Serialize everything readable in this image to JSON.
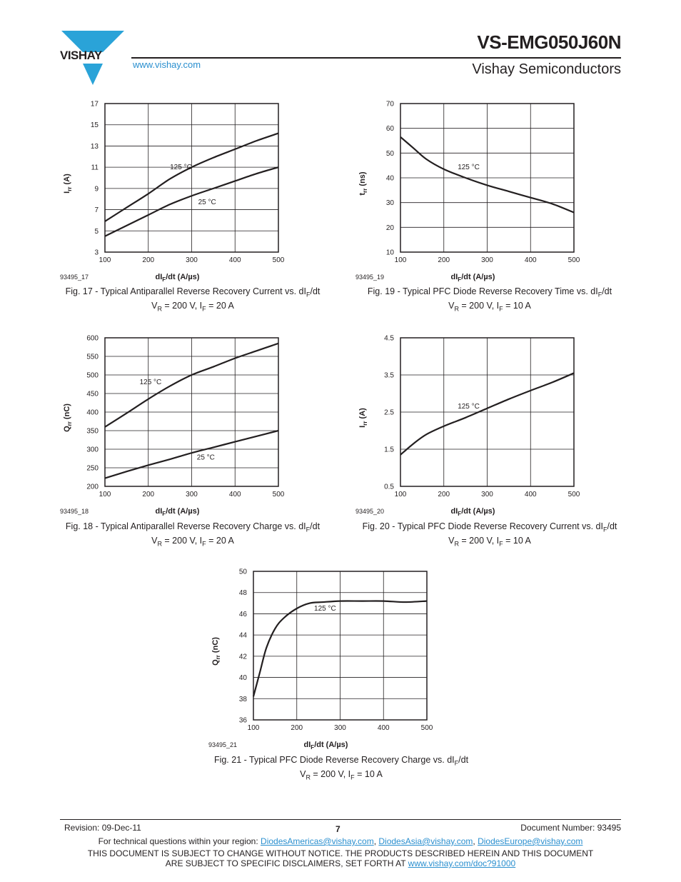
{
  "header": {
    "brand": "VISHAY",
    "part_number": "VS-EMG050J60N",
    "company": "Vishay Semiconductors",
    "website": "www.vishay.com"
  },
  "chart_data": [
    {
      "id": "fig17",
      "type": "line",
      "ylabel": "Irr (A)",
      "xlabel": "dIF/dt (A/µs)",
      "x_ticks": [
        100,
        200,
        300,
        400,
        500
      ],
      "y_ticks": [
        3,
        5,
        7,
        9,
        11,
        13,
        15,
        17
      ],
      "xlim": [
        100,
        500
      ],
      "ylim": [
        3,
        17
      ],
      "grid": true,
      "figure_id": "93495_17",
      "series": [
        {
          "name": "125 °C",
          "x": [
            100,
            150,
            200,
            250,
            300,
            350,
            400,
            450,
            500
          ],
          "y": [
            5.9,
            7.2,
            8.5,
            9.9,
            11.0,
            11.9,
            12.7,
            13.5,
            14.2
          ]
        },
        {
          "name": "25 °C",
          "x": [
            100,
            150,
            200,
            250,
            300,
            350,
            400,
            450,
            500
          ],
          "y": [
            4.5,
            5.5,
            6.5,
            7.5,
            8.3,
            9.0,
            9.7,
            10.4,
            11.0
          ]
        }
      ],
      "annotations": [
        {
          "text": "125 °C",
          "x": 250,
          "y": 10.8
        },
        {
          "text": "25 °C",
          "x": 315,
          "y": 7.5
        }
      ],
      "caption_line1": "Fig. 17 - Typical Antiparallel Reverse Recovery Current vs. dIF/dt",
      "caption_line2": "VR = 200 V, IF = 20 A"
    },
    {
      "id": "fig19",
      "type": "line",
      "ylabel": "trr (ns)",
      "xlabel": "dIF/dt (A/µs)",
      "x_ticks": [
        100,
        200,
        300,
        400,
        500
      ],
      "y_ticks": [
        10,
        20,
        30,
        40,
        50,
        60,
        70
      ],
      "xlim": [
        100,
        500
      ],
      "ylim": [
        10,
        70
      ],
      "grid": true,
      "figure_id": "93495_19",
      "series": [
        {
          "name": "125 °C",
          "x": [
            100,
            130,
            160,
            200,
            250,
            300,
            350,
            400,
            450,
            500
          ],
          "y": [
            56.5,
            52.0,
            47.5,
            43.5,
            40.0,
            37.0,
            34.5,
            32.0,
            29.5,
            26.0
          ]
        }
      ],
      "annotations": [
        {
          "text": "125 °C",
          "x": 232,
          "y": 43.5
        }
      ],
      "caption_line1": "Fig. 19 - Typical PFC Diode Reverse Recovery Time vs. dIF/dt",
      "caption_line2": "VR = 200 V, IF = 10 A"
    },
    {
      "id": "fig18",
      "type": "line",
      "ylabel": "Qrr (nC)",
      "xlabel": "dIF/dt (A/µs)",
      "x_ticks": [
        100,
        200,
        300,
        400,
        500
      ],
      "y_ticks": [
        200,
        250,
        300,
        350,
        400,
        450,
        500,
        550,
        600
      ],
      "xlim": [
        100,
        500
      ],
      "ylim": [
        200,
        600
      ],
      "grid": true,
      "figure_id": "93495_18",
      "series": [
        {
          "name": "125 °C",
          "x": [
            100,
            150,
            200,
            250,
            300,
            350,
            400,
            450,
            500
          ],
          "y": [
            360,
            397,
            435,
            470,
            500,
            522,
            545,
            565,
            585
          ]
        },
        {
          "name": "25 °C",
          "x": [
            100,
            150,
            200,
            250,
            300,
            350,
            400,
            450,
            500
          ],
          "y": [
            222,
            240,
            257,
            273,
            290,
            305,
            320,
            335,
            350
          ]
        }
      ],
      "annotations": [
        {
          "text": "125 °C",
          "x": 180,
          "y": 475
        },
        {
          "text": "25 °C",
          "x": 312,
          "y": 272
        }
      ],
      "caption_line1": "Fig. 18 - Typical Antiparallel Reverse Recovery Charge vs. dIF/dt",
      "caption_line2": "VR = 200 V, IF = 20 A"
    },
    {
      "id": "fig20",
      "type": "line",
      "ylabel": "Irr (A)",
      "xlabel": "dIF/dt (A/µs)",
      "x_ticks": [
        100,
        200,
        300,
        400,
        500
      ],
      "y_ticks": [
        0.5,
        1.5,
        2.5,
        3.5,
        4.5
      ],
      "xlim": [
        100,
        500
      ],
      "ylim": [
        0.5,
        4.5
      ],
      "grid": true,
      "figure_id": "93495_20",
      "series": [
        {
          "name": "125 °C",
          "x": [
            100,
            130,
            160,
            200,
            250,
            300,
            350,
            400,
            450,
            500
          ],
          "y": [
            1.35,
            1.65,
            1.9,
            2.12,
            2.35,
            2.6,
            2.85,
            3.08,
            3.3,
            3.55
          ]
        }
      ],
      "annotations": [
        {
          "text": "125 °C",
          "x": 232,
          "y": 2.6
        }
      ],
      "caption_line1": "Fig. 20 - Typical PFC Diode Reverse Recovery Current vs. dIF/dt",
      "caption_line2": "VR = 200 V, IF = 10 A"
    },
    {
      "id": "fig21",
      "type": "line",
      "ylabel": "Qrr (nC)",
      "xlabel": "dIF/dt (A/µs)",
      "x_ticks": [
        100,
        200,
        300,
        400,
        500
      ],
      "y_ticks": [
        36,
        38,
        40,
        42,
        44,
        46,
        48,
        50
      ],
      "xlim": [
        100,
        500
      ],
      "ylim": [
        36,
        50
      ],
      "grid": true,
      "figure_id": "93495_21",
      "series": [
        {
          "name": "125 °C",
          "x": [
            100,
            115,
            130,
            150,
            170,
            200,
            230,
            260,
            300,
            350,
            400,
            450,
            500
          ],
          "y": [
            38.2,
            40.5,
            42.8,
            44.6,
            45.6,
            46.5,
            47.0,
            47.1,
            47.2,
            47.2,
            47.2,
            47.1,
            47.2
          ]
        }
      ],
      "annotations": [
        {
          "text": "125 °C",
          "x": 240,
          "y": 46.3
        }
      ],
      "caption_line1": "Fig. 21 - Typical PFC Diode Reverse Recovery Charge vs. dIF/dt",
      "caption_line2": "VR = 200 V, IF = 10 A"
    }
  ],
  "footer": {
    "revision": "Revision: 09-Dec-11",
    "page": "7",
    "document_number": "Document Number: 93495",
    "contact_prefix": "For technical questions within your region: ",
    "email_americas": "DiodesAmericas@vishay.com",
    "email_asia": "DiodesAsia@vishay.com",
    "email_europe": "DiodesEurope@vishay.com",
    "disclaimer_line1": "THIS DOCUMENT IS SUBJECT TO CHANGE WITHOUT NOTICE. THE PRODUCTS DESCRIBED HEREIN AND THIS DOCUMENT",
    "disclaimer_line2_prefix": "ARE SUBJECT TO SPECIFIC DISCLAIMERS, SET FORTH AT ",
    "disclaimer_link": "www.vishay.com/doc?91000"
  },
  "colors": {
    "text": "#231f20",
    "link": "#2a8fcf",
    "logo_blue": "#2aa3d8"
  }
}
